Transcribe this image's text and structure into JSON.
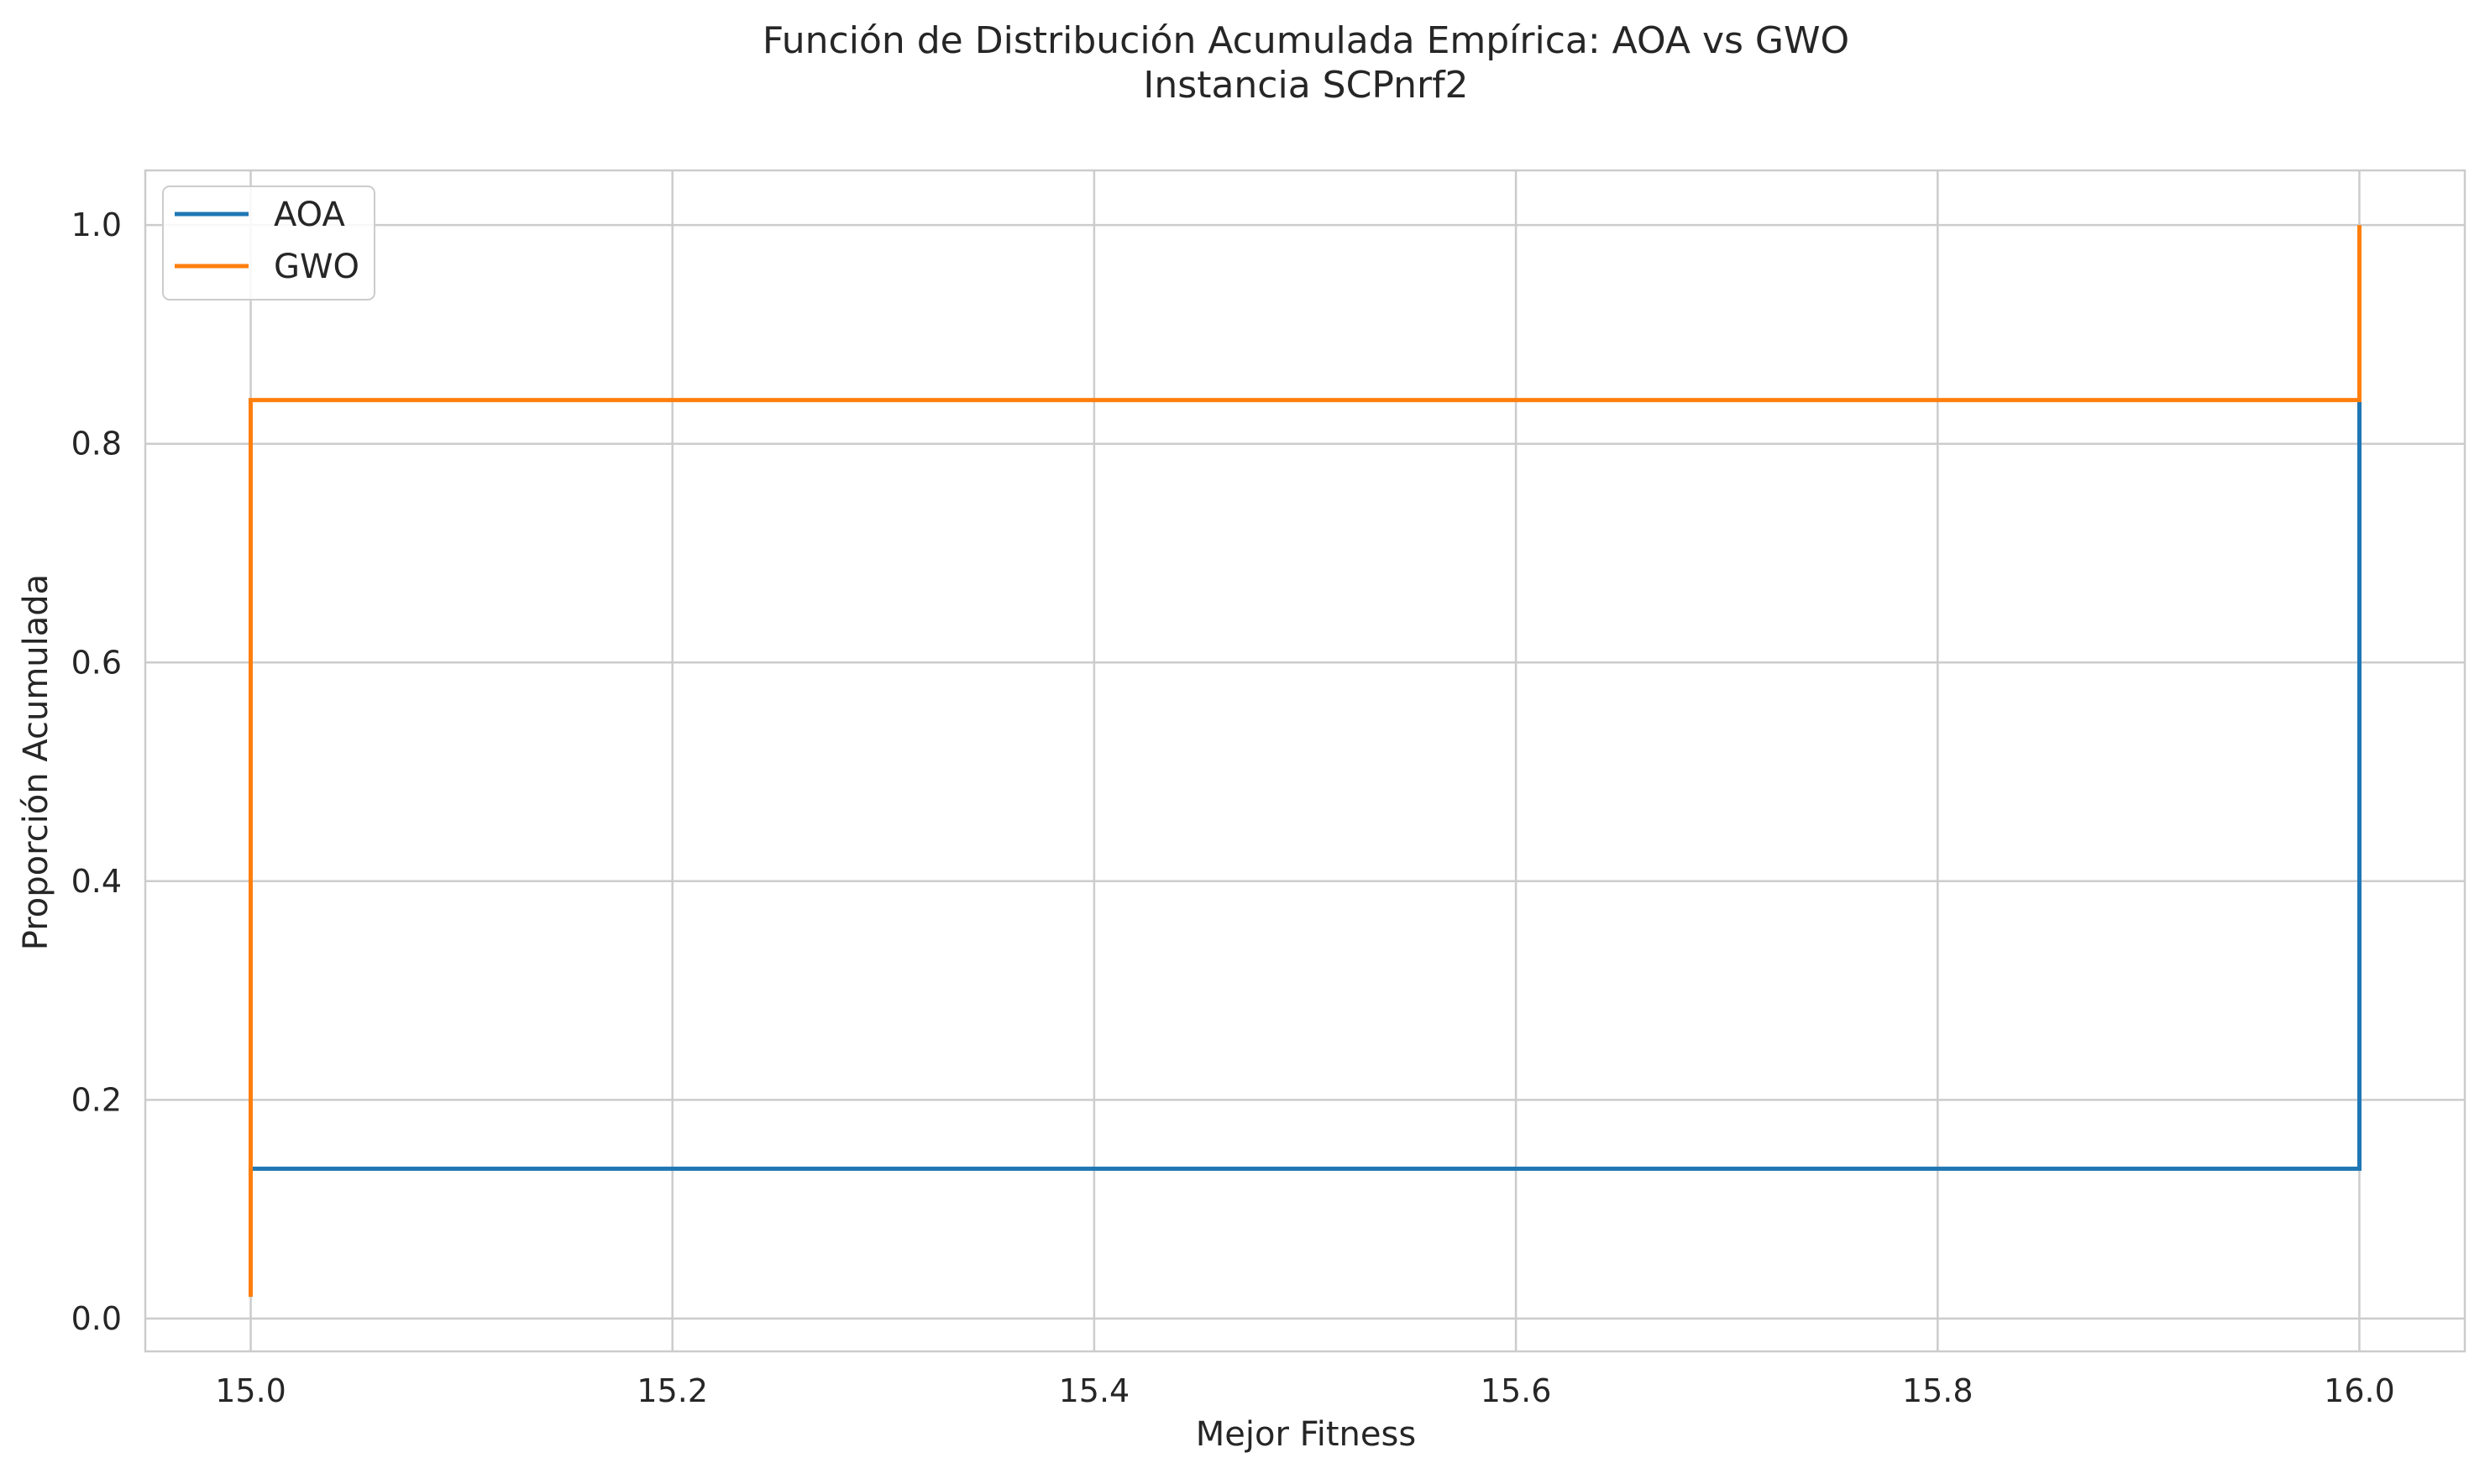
{
  "chart_data": {
    "type": "line",
    "title": "Función de Distribución Acumulada Empírica: AOA vs GWO",
    "subtitle": "Instancia SCPnrf2",
    "xlabel": "Mejor Fitness",
    "ylabel": "Proporción Acumulada",
    "xlim": [
      14.95,
      16.05
    ],
    "ylim": [
      -0.03,
      1.05
    ],
    "xticks": [
      15.0,
      15.2,
      15.4,
      15.6,
      15.8,
      16.0
    ],
    "xtick_labels": [
      "15.0",
      "15.2",
      "15.4",
      "15.6",
      "15.8",
      "16.0"
    ],
    "yticks": [
      0.0,
      0.2,
      0.4,
      0.6,
      0.8,
      1.0
    ],
    "ytick_labels": [
      "0.0",
      "0.2",
      "0.4",
      "0.6",
      "0.8",
      "1.0"
    ],
    "grid": true,
    "legend_position": "top-left",
    "step": "post",
    "series": [
      {
        "name": "AOA",
        "color": "#1f77b4",
        "x": [
          15.0,
          15.0,
          16.0,
          16.0
        ],
        "y": [
          0.02,
          0.137,
          0.137,
          0.84
        ]
      },
      {
        "name": "GWO",
        "color": "#ff7f0e",
        "x": [
          15.0,
          15.0,
          16.0,
          16.0
        ],
        "y": [
          0.02,
          0.84,
          0.84,
          1.0
        ]
      }
    ]
  }
}
